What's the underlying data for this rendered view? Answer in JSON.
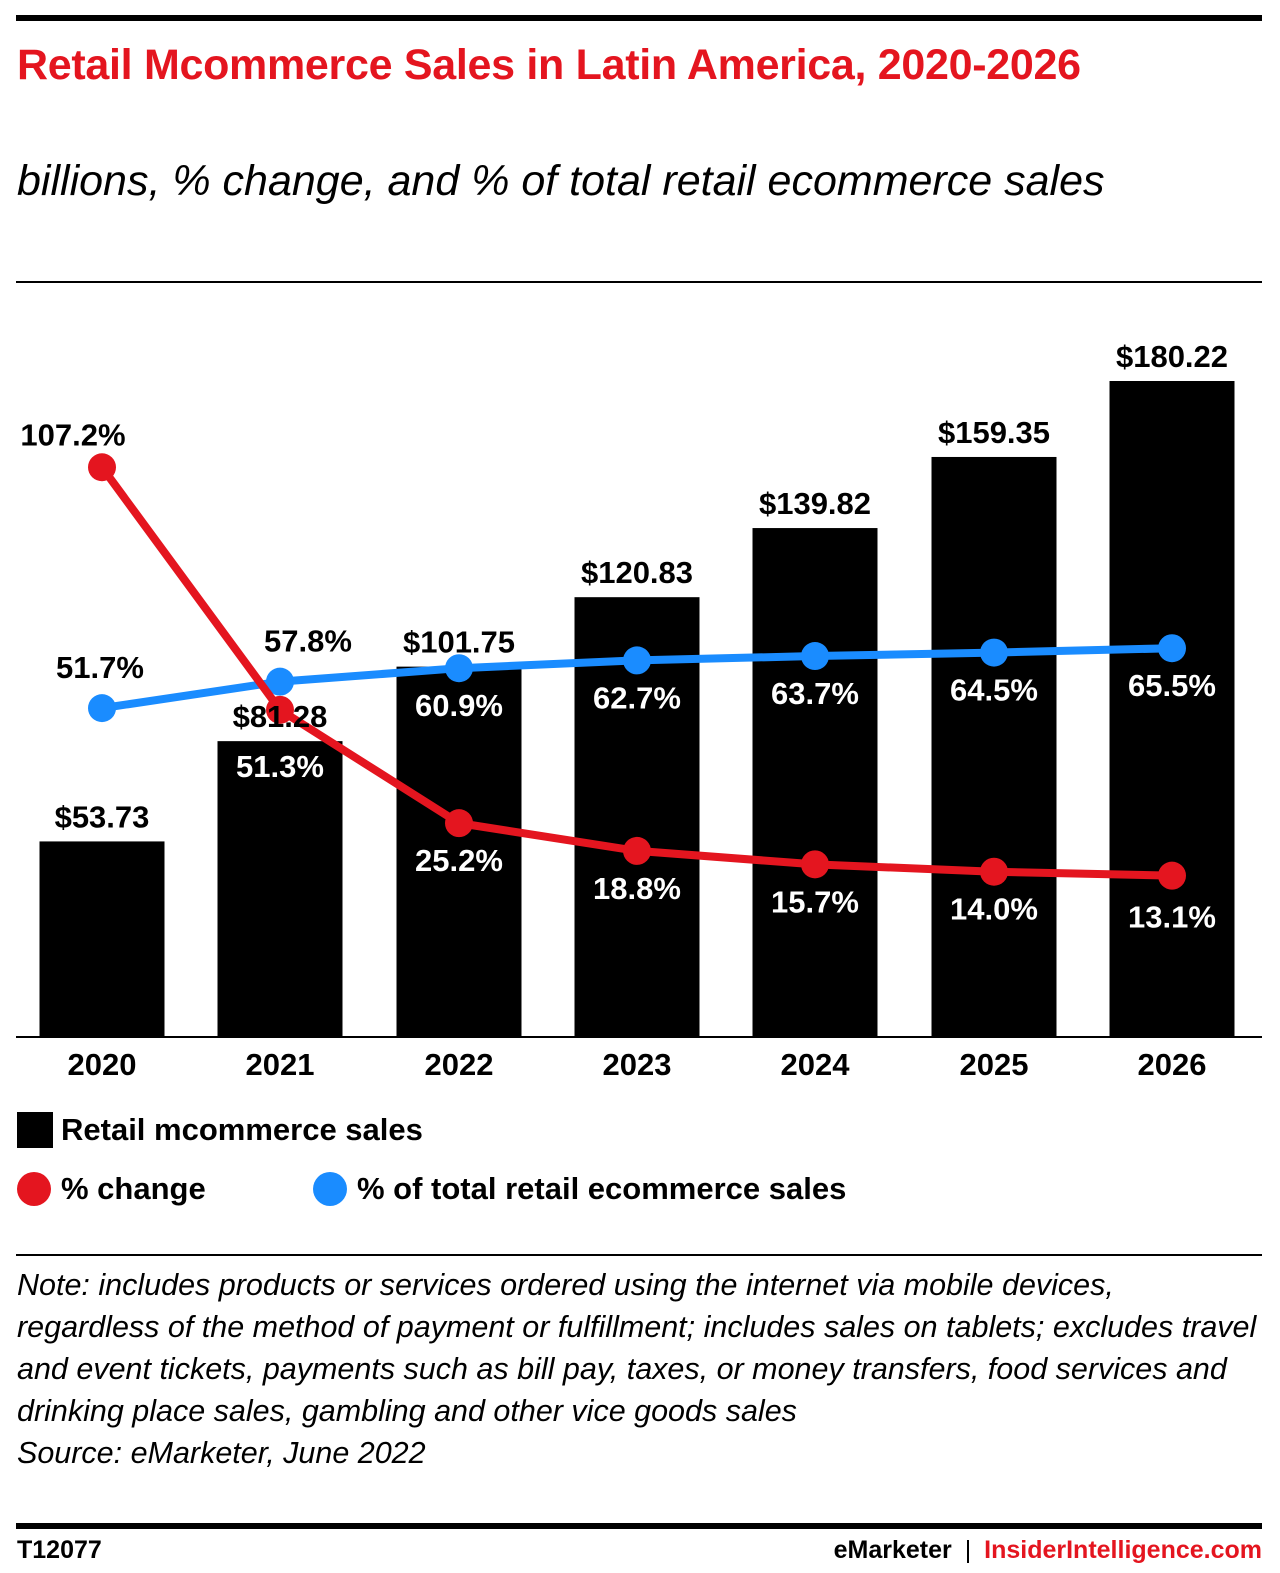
{
  "header": {
    "title": "Retail Mcommerce Sales in Latin America, 2020-2026",
    "subtitle": "billions, % change, and % of total retail ecommerce sales"
  },
  "chart_data": {
    "type": "bar",
    "categories": [
      "2020",
      "2021",
      "2022",
      "2023",
      "2024",
      "2025",
      "2026"
    ],
    "series": [
      {
        "name": "Retail mcommerce sales",
        "kind": "bar",
        "values": [
          53.73,
          81.28,
          101.75,
          120.83,
          139.82,
          159.35,
          180.22
        ],
        "labels": [
          "$53.73",
          "$81.28",
          "$101.75",
          "$120.83",
          "$139.82",
          "$159.35",
          "$180.22"
        ],
        "color": "#000000"
      },
      {
        "name": "% change",
        "kind": "line",
        "values": [
          107.2,
          51.3,
          25.2,
          18.8,
          15.7,
          14.0,
          13.1
        ],
        "labels": [
          "107.2%",
          "51.3%",
          "25.2%",
          "18.8%",
          "15.7%",
          "14.0%",
          "13.1%"
        ],
        "color": "#e4151f"
      },
      {
        "name": "% of total retail ecommerce sales",
        "kind": "line",
        "values": [
          51.7,
          57.8,
          60.9,
          62.7,
          63.7,
          64.5,
          65.5
        ],
        "labels": [
          "51.7%",
          "57.8%",
          "60.9%",
          "62.7%",
          "63.7%",
          "64.5%",
          "65.5%"
        ],
        "color": "#1a8cff"
      }
    ],
    "grid": false,
    "legend_position": "bottom-left"
  },
  "legend": {
    "bar": "Retail mcommerce sales",
    "change": "% change",
    "share": "% of total retail ecommerce sales"
  },
  "note": "Note: includes products or services ordered using the internet via mobile devices, regardless of the method of payment or fulfillment; includes sales on tablets; excludes travel and event tickets, payments such as bill pay, taxes, or money transfers, food services and drinking place sales, gambling and other vice goods sales",
  "source": "Source: eMarketer, June 2022",
  "footer": {
    "chart_id": "T12077",
    "brand": "eMarketer",
    "separator": "|",
    "brand_secondary": "InsiderIntelligence.com"
  },
  "colors": {
    "accent": "#e4151f",
    "share_line": "#1a8cff",
    "bar": "#000000"
  }
}
